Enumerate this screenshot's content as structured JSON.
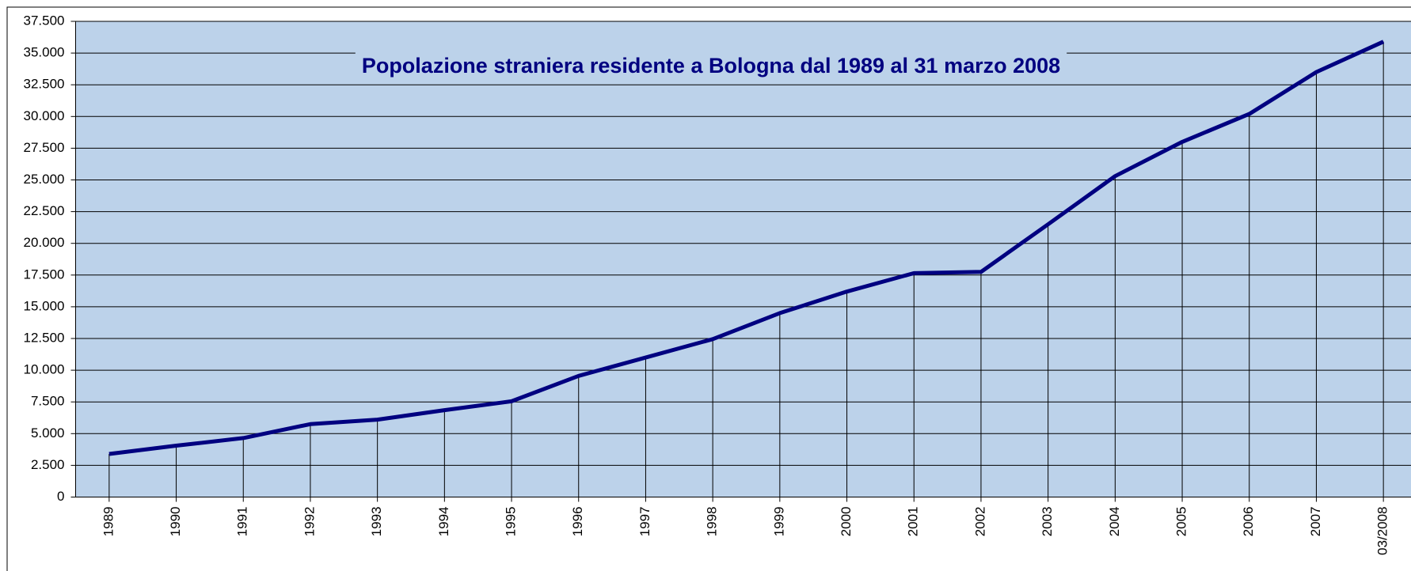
{
  "chart_data": {
    "type": "line",
    "title": "Popolazione straniera residente a Bologna dal 1989 al 31 marzo 2008",
    "categories": [
      "1989",
      "1990",
      "1991",
      "1992",
      "1993",
      "1994",
      "1995",
      "1996",
      "1997",
      "1998",
      "1999",
      "2000",
      "2001",
      "2002",
      "2003",
      "2004",
      "2005",
      "2006",
      "2007",
      "03/2008"
    ],
    "series": [
      {
        "name": "Popolazione straniera",
        "color": "#000080",
        "values": [
          3400,
          4050,
          4650,
          5750,
          6100,
          6850,
          7550,
          9550,
          11000,
          12450,
          14500,
          16200,
          17650,
          17750,
          21500,
          25300,
          28000,
          30200,
          33500,
          35900
        ]
      }
    ],
    "ylim": [
      0,
      37500
    ],
    "yticks": [
      0,
      {
        "value": 2500,
        "label": "2.500"
      },
      {
        "value": 5000,
        "label": "5.000"
      },
      {
        "value": 7500,
        "label": "7.500"
      },
      {
        "value": 10000,
        "label": "10.000"
      },
      {
        "value": 12500,
        "label": "12.500"
      },
      {
        "value": 15000,
        "label": "15.000"
      },
      {
        "value": 17500,
        "label": "17.500"
      },
      {
        "value": 20000,
        "label": "20.000"
      },
      {
        "value": 22500,
        "label": "22.500"
      },
      {
        "value": 25000,
        "label": "25.000"
      },
      {
        "value": 27500,
        "label": "27.500"
      },
      {
        "value": 30000,
        "label": "30.000"
      },
      {
        "value": 32500,
        "label": "32.500"
      },
      {
        "value": 35000,
        "label": "35.000"
      },
      {
        "value": 37500,
        "label": "37.500"
      }
    ],
    "grid": true,
    "drop_lines": true
  }
}
